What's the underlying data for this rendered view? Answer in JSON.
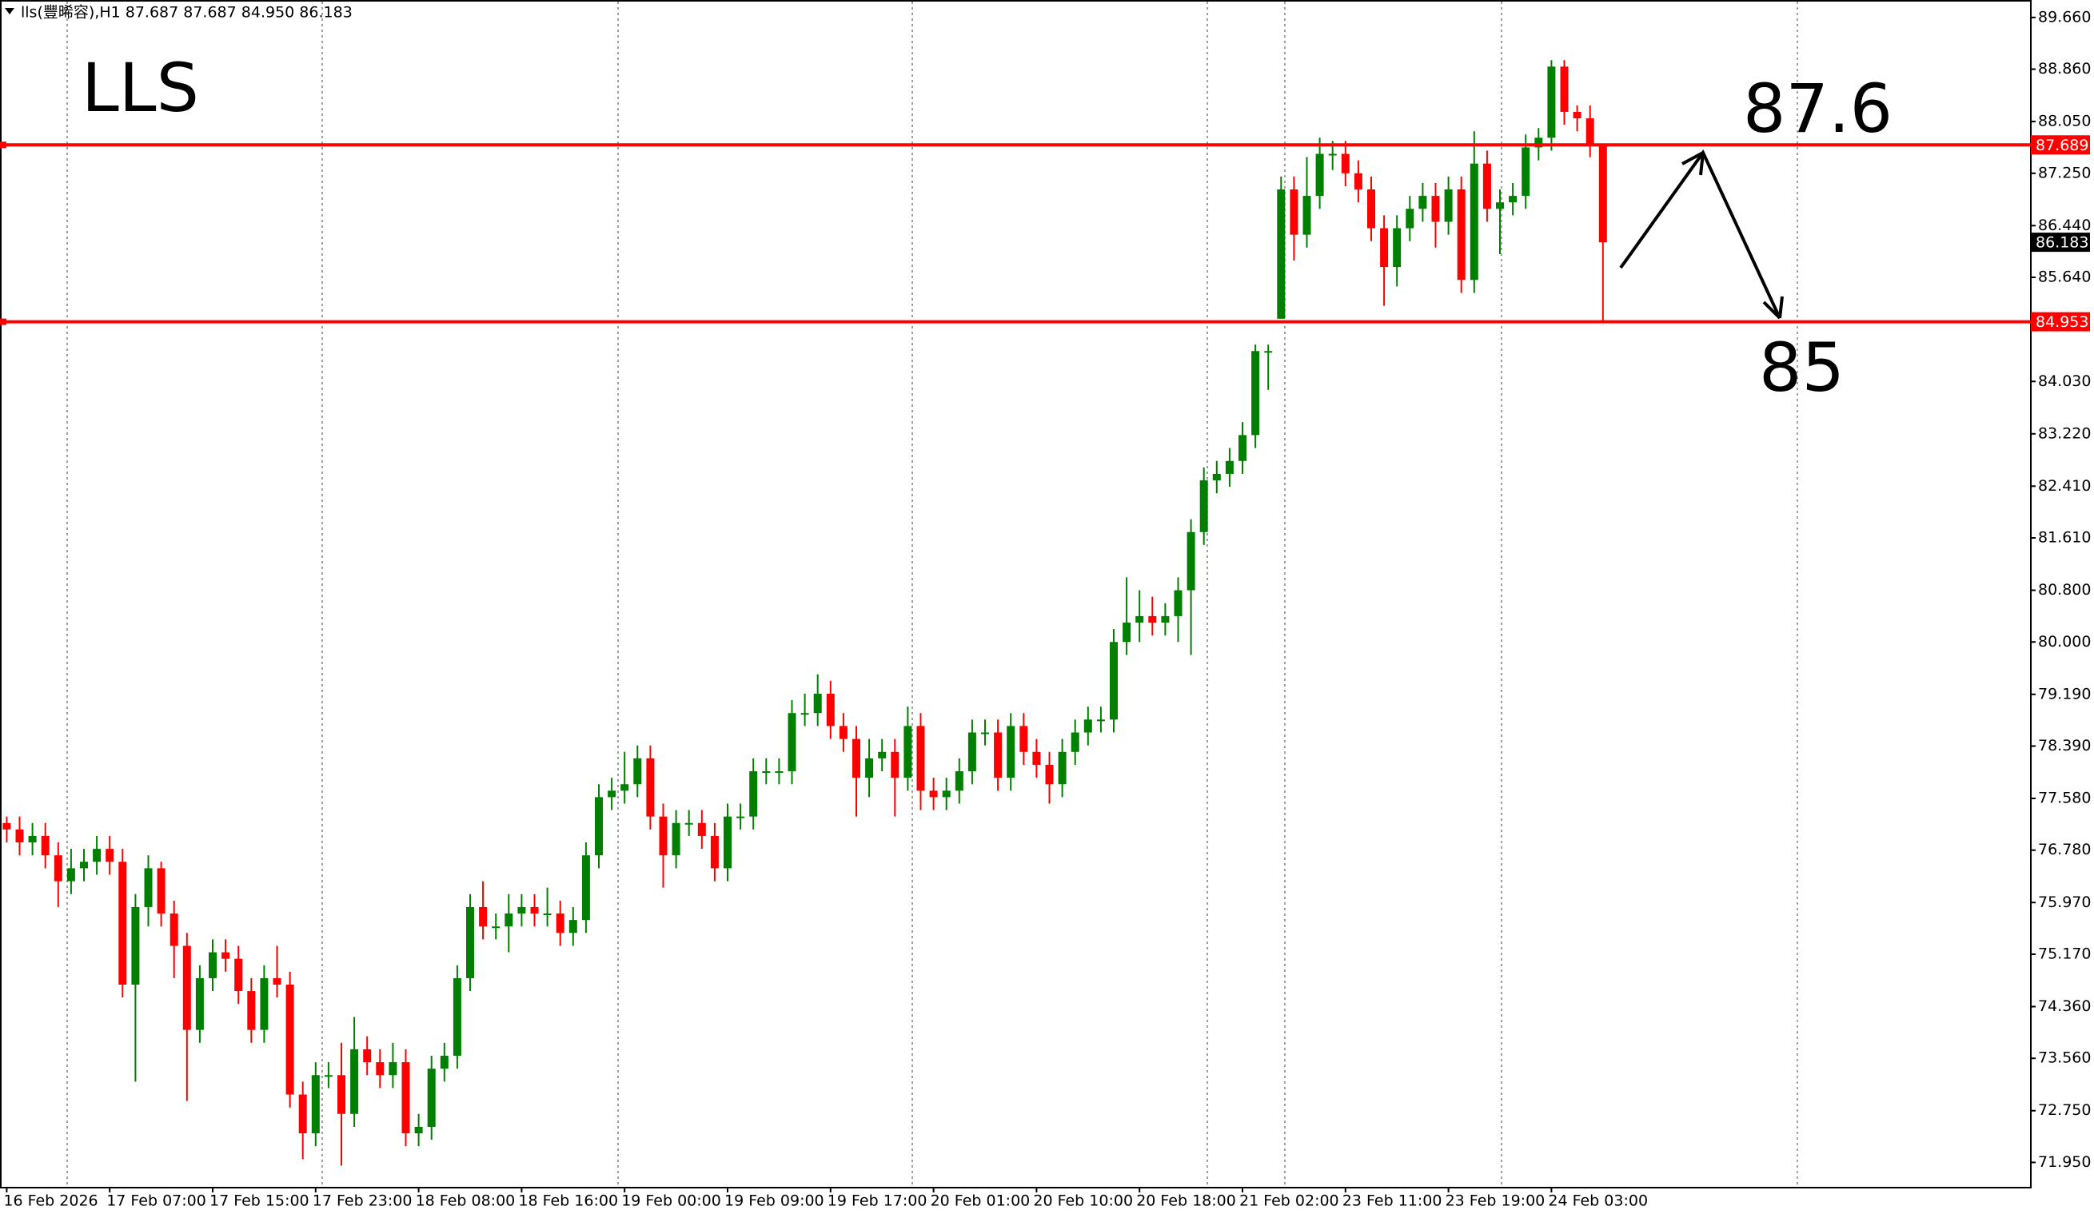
{
  "chart_data": {
    "type": "candlestick",
    "title": "LLS",
    "header": "lls(豐晞容),H1  87.687 87.687 84.950 86.183",
    "annotations": [
      "87.6",
      "85"
    ],
    "categories": [
      "16 Feb 2026",
      null,
      null,
      null,
      null,
      null,
      null,
      null,
      "17 Feb 07:00",
      null,
      null,
      null,
      null,
      null,
      null,
      null,
      "17 Feb 15:00",
      null,
      null,
      null,
      null,
      null,
      null,
      null,
      "17 Feb 23:00",
      null,
      null,
      null,
      null,
      null,
      null,
      null,
      "18 Feb 08:00",
      null,
      null,
      null,
      null,
      null,
      null,
      null,
      "18 Feb 16:00",
      null,
      null,
      null,
      null,
      null,
      null,
      null,
      "19 Feb 00:00",
      null,
      null,
      null,
      null,
      null,
      null,
      null,
      "19 Feb 09:00",
      null,
      null,
      null,
      null,
      null,
      null,
      null,
      "19 Feb 17:00",
      null,
      null,
      null,
      null,
      null,
      null,
      null,
      "20 Feb 01:00",
      null,
      null,
      null,
      null,
      null,
      null,
      null,
      "20 Feb 10:00",
      null,
      null,
      null,
      null,
      null,
      null,
      null,
      "20 Feb 18:00",
      null,
      null,
      null,
      null,
      null,
      null,
      null,
      "21 Feb 02:00",
      null,
      null,
      null,
      null,
      null,
      null,
      null,
      "23 Feb 11:00",
      null,
      null,
      null,
      null,
      null,
      null,
      null,
      "23 Feb 19:00",
      null,
      null,
      null,
      null,
      null,
      null,
      null,
      "24 Feb 03:00",
      null,
      null,
      null,
      null
    ],
    "open": [
      77.2,
      77.1,
      76.9,
      77.0,
      76.7,
      76.3,
      76.5,
      76.6,
      76.8,
      76.6,
      74.7,
      75.9,
      76.5,
      75.8,
      75.3,
      74.0,
      74.8,
      75.2,
      75.1,
      74.6,
      74.0,
      74.8,
      74.7,
      73.0,
      72.4,
      73.3,
      73.3,
      72.7,
      73.7,
      73.5,
      73.3,
      73.5,
      72.4,
      72.5,
      73.4,
      73.6,
      74.8,
      75.9,
      75.6,
      75.6,
      75.8,
      75.9,
      75.8,
      75.8,
      75.5,
      75.7,
      76.7,
      77.6,
      77.7,
      77.8,
      78.2,
      77.3,
      76.7,
      77.2,
      77.2,
      77.0,
      76.5,
      77.3,
      77.3,
      78.0,
      78.0,
      78.0,
      78.9,
      78.9,
      79.2,
      78.7,
      78.5,
      77.9,
      78.2,
      78.3,
      77.9,
      78.7,
      77.7,
      77.6,
      77.7,
      78.0,
      78.6,
      78.6,
      77.9,
      78.7,
      78.3,
      78.1,
      77.8,
      78.3,
      78.6,
      78.8,
      78.8,
      80.0,
      80.3,
      80.4,
      80.3,
      80.4,
      80.8,
      81.7,
      82.5,
      82.6,
      82.8,
      83.2,
      84.5,
      85.0,
      87.0,
      86.3,
      86.9,
      87.55,
      87.55,
      87.25,
      87.0,
      86.4,
      85.8,
      86.4,
      86.7,
      86.9,
      86.5,
      87.0,
      85.6,
      87.4,
      86.7,
      86.8,
      86.9,
      87.65,
      87.8,
      88.9,
      88.2,
      88.1,
      87.687
    ],
    "high": [
      77.3,
      77.3,
      77.2,
      77.2,
      76.9,
      76.8,
      76.8,
      77.0,
      77.0,
      76.8,
      76.1,
      76.7,
      76.6,
      76.0,
      75.5,
      75.0,
      75.4,
      75.4,
      75.3,
      74.8,
      75.0,
      75.3,
      74.9,
      73.2,
      73.5,
      73.5,
      73.8,
      74.2,
      73.9,
      73.7,
      73.8,
      73.7,
      72.7,
      73.6,
      73.8,
      75.0,
      76.1,
      76.3,
      75.8,
      76.1,
      76.1,
      76.1,
      76.2,
      76.0,
      75.9,
      76.9,
      77.8,
      77.9,
      78.3,
      78.4,
      78.4,
      77.5,
      77.4,
      77.4,
      77.4,
      77.2,
      77.5,
      77.5,
      78.2,
      78.2,
      78.2,
      79.1,
      79.2,
      79.5,
      79.4,
      78.9,
      78.7,
      78.5,
      78.5,
      78.5,
      79.0,
      78.9,
      77.9,
      77.9,
      78.2,
      78.8,
      78.8,
      78.8,
      78.9,
      78.9,
      78.5,
      78.3,
      78.5,
      78.8,
      79.0,
      79.0,
      80.2,
      81.0,
      80.8,
      80.7,
      80.6,
      81.0,
      81.9,
      82.7,
      82.8,
      83.0,
      83.4,
      84.6,
      84.6,
      87.2,
      87.2,
      87.5,
      87.8,
      87.75,
      87.75,
      87.45,
      87.2,
      86.6,
      86.6,
      86.9,
      87.1,
      87.1,
      87.2,
      87.2,
      87.9,
      87.6,
      87.0,
      87.1,
      87.85,
      87.95,
      89.0,
      89.0,
      88.3,
      88.3,
      87.687
    ],
    "low": [
      76.9,
      76.7,
      76.7,
      76.5,
      75.9,
      76.1,
      76.3,
      76.4,
      76.4,
      74.5,
      73.2,
      75.6,
      75.6,
      74.8,
      72.9,
      73.8,
      74.6,
      74.9,
      74.4,
      73.8,
      73.8,
      74.5,
      72.8,
      72.0,
      72.2,
      73.1,
      71.9,
      72.5,
      73.3,
      73.1,
      73.1,
      72.2,
      72.2,
      72.3,
      73.2,
      73.4,
      74.6,
      75.4,
      75.4,
      75.2,
      75.6,
      75.6,
      75.6,
      75.3,
      75.3,
      75.5,
      76.5,
      77.4,
      77.5,
      77.6,
      77.1,
      76.2,
      76.5,
      77.0,
      76.8,
      76.3,
      76.3,
      77.1,
      77.1,
      77.8,
      77.8,
      77.8,
      78.7,
      78.7,
      78.5,
      78.3,
      77.3,
      77.6,
      78.0,
      77.3,
      77.7,
      77.4,
      77.4,
      77.4,
      77.5,
      77.8,
      78.4,
      77.7,
      77.7,
      78.1,
      77.9,
      77.5,
      77.6,
      78.1,
      78.4,
      78.6,
      78.6,
      79.8,
      80.0,
      80.1,
      80.1,
      80.0,
      79.8,
      81.5,
      82.3,
      82.4,
      82.6,
      83.0,
      83.9,
      85.0,
      85.9,
      86.1,
      86.7,
      87.3,
      87.05,
      86.8,
      86.2,
      85.2,
      85.5,
      86.2,
      86.5,
      86.1,
      86.3,
      85.4,
      85.4,
      86.5,
      86.0,
      86.6,
      86.7,
      87.45,
      87.6,
      88.0,
      87.9,
      87.5,
      84.95
    ],
    "close": [
      77.1,
      76.9,
      77.0,
      76.7,
      76.3,
      76.5,
      76.6,
      76.8,
      76.6,
      74.7,
      75.9,
      76.5,
      75.8,
      75.3,
      74.0,
      74.8,
      75.2,
      75.1,
      74.6,
      74.0,
      74.8,
      74.7,
      73.0,
      72.4,
      73.3,
      73.3,
      72.7,
      73.7,
      73.5,
      73.3,
      73.5,
      72.4,
      72.5,
      73.4,
      73.6,
      74.8,
      75.9,
      75.6,
      75.6,
      75.8,
      75.9,
      75.8,
      75.8,
      75.5,
      75.7,
      76.7,
      77.6,
      77.7,
      77.8,
      78.2,
      77.3,
      76.7,
      77.2,
      77.2,
      77.0,
      76.5,
      77.3,
      77.3,
      78.0,
      78.0,
      78.0,
      78.9,
      78.9,
      79.2,
      78.7,
      78.5,
      77.9,
      78.2,
      78.3,
      77.9,
      78.7,
      77.7,
      77.6,
      77.7,
      78.0,
      78.6,
      78.6,
      77.9,
      78.7,
      78.3,
      78.1,
      77.8,
      78.3,
      78.6,
      78.8,
      78.8,
      80.0,
      80.3,
      80.4,
      80.3,
      80.4,
      80.8,
      81.7,
      82.5,
      82.6,
      82.8,
      83.2,
      84.5,
      84.5,
      87.0,
      86.3,
      86.9,
      87.55,
      87.55,
      87.25,
      87.0,
      86.4,
      85.8,
      86.4,
      86.7,
      86.9,
      86.5,
      87.0,
      85.6,
      87.4,
      86.7,
      86.8,
      86.9,
      87.65,
      87.8,
      88.9,
      88.2,
      88.1,
      87.7,
      86.183
    ],
    "up_color": "#008000",
    "down_color": "#ff0000",
    "ylim": [
      71.56,
      89.93
    ],
    "yticks": [
      {
        "value": 89.66,
        "label": "89.660"
      },
      {
        "value": 88.86,
        "label": "88.860"
      },
      {
        "value": 88.05,
        "label": "88.050"
      },
      {
        "value": 87.25,
        "label": "87.250"
      },
      {
        "value": 86.44,
        "label": "86.440"
      },
      {
        "value": 85.64,
        "label": "85.640"
      },
      {
        "value": 84.03,
        "label": "84.030"
      },
      {
        "value": 83.22,
        "label": "83.220"
      },
      {
        "value": 82.41,
        "label": "82.410"
      },
      {
        "value": 81.61,
        "label": "81.610"
      },
      {
        "value": 80.8,
        "label": "80.800"
      },
      {
        "value": 80.0,
        "label": "80.000"
      },
      {
        "value": 79.19,
        "label": "79.190"
      },
      {
        "value": 78.39,
        "label": "78.390"
      },
      {
        "value": 77.58,
        "label": "77.580"
      },
      {
        "value": 76.78,
        "label": "76.780"
      },
      {
        "value": 75.97,
        "label": "75.970"
      },
      {
        "value": 75.17,
        "label": "75.170"
      },
      {
        "value": 74.36,
        "label": "74.360"
      },
      {
        "value": 73.56,
        "label": "73.560"
      },
      {
        "value": 72.75,
        "label": "72.750"
      },
      {
        "value": 71.95,
        "label": "71.950"
      }
    ],
    "levels": [
      87.689,
      84.953
    ],
    "level_color": "#ff0000",
    "current_price": 86.183
  }
}
